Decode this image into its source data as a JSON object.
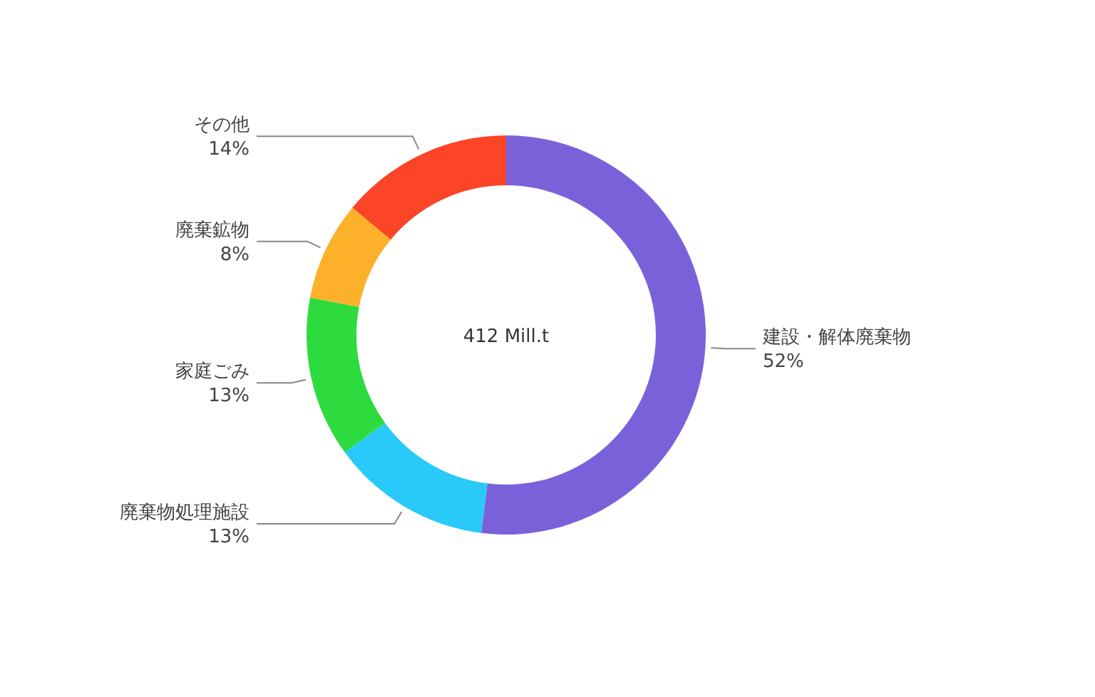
{
  "chart_data": {
    "type": "donut",
    "categories": [
      "建設・解体廃棄物",
      "廃棄物処理施設",
      "家庭ごみ",
      "廃棄鉱物",
      "その他"
    ],
    "values": [
      52,
      13,
      13,
      8,
      14
    ],
    "value_labels": [
      "52%",
      "13%",
      "13%",
      "8%",
      "14%"
    ],
    "colors": [
      "#7b61d9",
      "#29c9f9",
      "#2edb3e",
      "#fdb12a",
      "#fc4428"
    ],
    "annotations": [
      "412 Mill.t"
    ]
  }
}
